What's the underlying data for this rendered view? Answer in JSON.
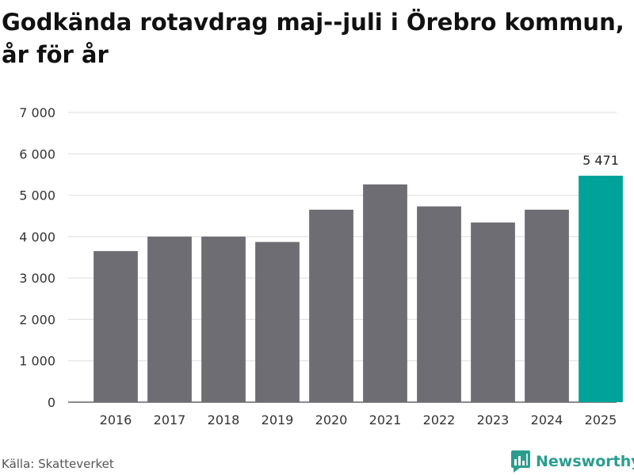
{
  "title": "Godkända rotavdrag maj--juli i Örebro kommun, år för år",
  "source": "Källa: Skatteverket",
  "brand": {
    "name": "Newsworthy",
    "icon": "newsworthy-logo-icon"
  },
  "colors": {
    "bar": "#6e6d73",
    "highlight": "#00a39a",
    "grid": "#dddddd",
    "brand": "#2a9d8f"
  },
  "chart_data": {
    "type": "bar",
    "categories": [
      "2016",
      "2017",
      "2018",
      "2019",
      "2020",
      "2021",
      "2022",
      "2023",
      "2024",
      "2025"
    ],
    "values": [
      3650,
      4000,
      4000,
      3870,
      4650,
      5260,
      4730,
      4340,
      4650,
      5471
    ],
    "highlight_index": 9,
    "data_labels": [
      {
        "index": 9,
        "text": "5 471"
      }
    ],
    "ylim": [
      0,
      7000
    ],
    "yticks": [
      0,
      1000,
      2000,
      3000,
      4000,
      5000,
      6000,
      7000
    ],
    "ytick_labels": [
      "0",
      "1 000",
      "2 000",
      "3 000",
      "4 000",
      "5 000",
      "6 000",
      "7 000"
    ],
    "grid": true,
    "xlabel": "",
    "ylabel": ""
  }
}
